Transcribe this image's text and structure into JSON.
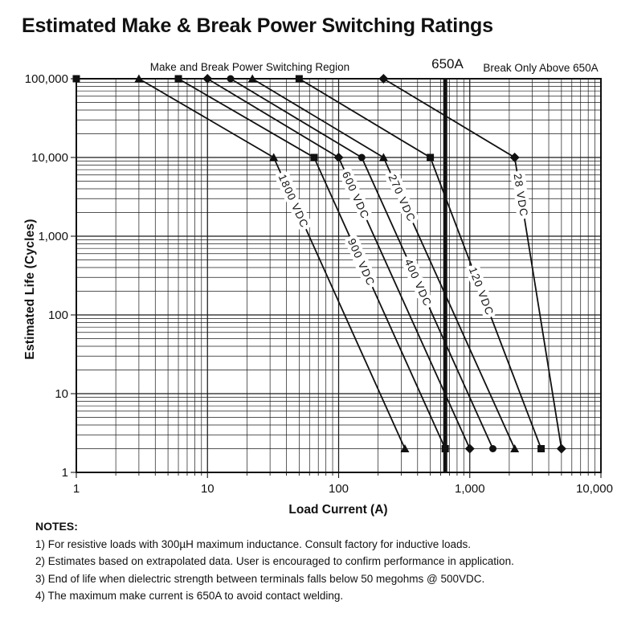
{
  "title": "Estimated Make & Break Power Switching Ratings",
  "notes": {
    "heading": "NOTES:",
    "items": [
      "1) For resistive loads with 300µH maximum inductance. Consult factory for inductive loads.",
      "2) Estimates based on extrapolated data. User is encouraged to confirm performance in application.",
      "3) End of life when dielectric strength between terminals falls below 50 megohms @ 500VDC.",
      "4) The maximum make current is 650A to avoid contact welding."
    ]
  },
  "chart_data": {
    "type": "line",
    "x_scale": "log",
    "y_scale": "log",
    "xlim": [
      1,
      10000
    ],
    "ylim": [
      1,
      100000
    ],
    "xlabel": "Load Current (A)",
    "ylabel": "Estimated Life (Cycles)",
    "x_ticks": [
      "1",
      "10",
      "100",
      "1,000",
      "10,000"
    ],
    "y_ticks": [
      "1",
      "10",
      "100",
      "1,000",
      "10,000",
      "100,000"
    ],
    "grid": "log-log major and minor gridlines, black on white",
    "annotations": {
      "region": "Make and Break Power Switching Region",
      "limit_label": "650A",
      "break_only": "Break Only Above 650A",
      "limit_line_current_a": 650
    },
    "start_marker": {
      "marker": "square",
      "at": [
        1,
        100000
      ]
    },
    "series": [
      {
        "name": "1800 VDC",
        "marker": "triangle",
        "points_a_cycles": [
          [
            1,
            100000
          ],
          [
            3,
            100000
          ],
          [
            32,
            10000
          ],
          [
            320,
            2
          ]
        ]
      },
      {
        "name": "900 VDC",
        "marker": "square",
        "points_a_cycles": [
          [
            1,
            100000
          ],
          [
            6,
            100000
          ],
          [
            65,
            10000
          ],
          [
            650,
            2
          ]
        ]
      },
      {
        "name": "600 VDC",
        "marker": "diamond",
        "points_a_cycles": [
          [
            1,
            100000
          ],
          [
            10,
            100000
          ],
          [
            100,
            10000
          ],
          [
            1000,
            2
          ]
        ]
      },
      {
        "name": "400 VDC",
        "marker": "circle",
        "points_a_cycles": [
          [
            1,
            100000
          ],
          [
            15,
            100000
          ],
          [
            150,
            10000
          ],
          [
            1500,
            2
          ]
        ]
      },
      {
        "name": "270 VDC",
        "marker": "triangle",
        "points_a_cycles": [
          [
            1,
            100000
          ],
          [
            22,
            100000
          ],
          [
            220,
            10000
          ],
          [
            2200,
            2
          ]
        ]
      },
      {
        "name": "120 VDC",
        "marker": "square",
        "points_a_cycles": [
          [
            1,
            100000
          ],
          [
            50,
            100000
          ],
          [
            500,
            10000
          ],
          [
            3500,
            2
          ]
        ]
      },
      {
        "name": "28 VDC",
        "marker": "diamond",
        "points_a_cycles": [
          [
            1,
            100000
          ],
          [
            220,
            100000
          ],
          [
            2200,
            10000
          ],
          [
            5000,
            2
          ]
        ]
      }
    ]
  }
}
